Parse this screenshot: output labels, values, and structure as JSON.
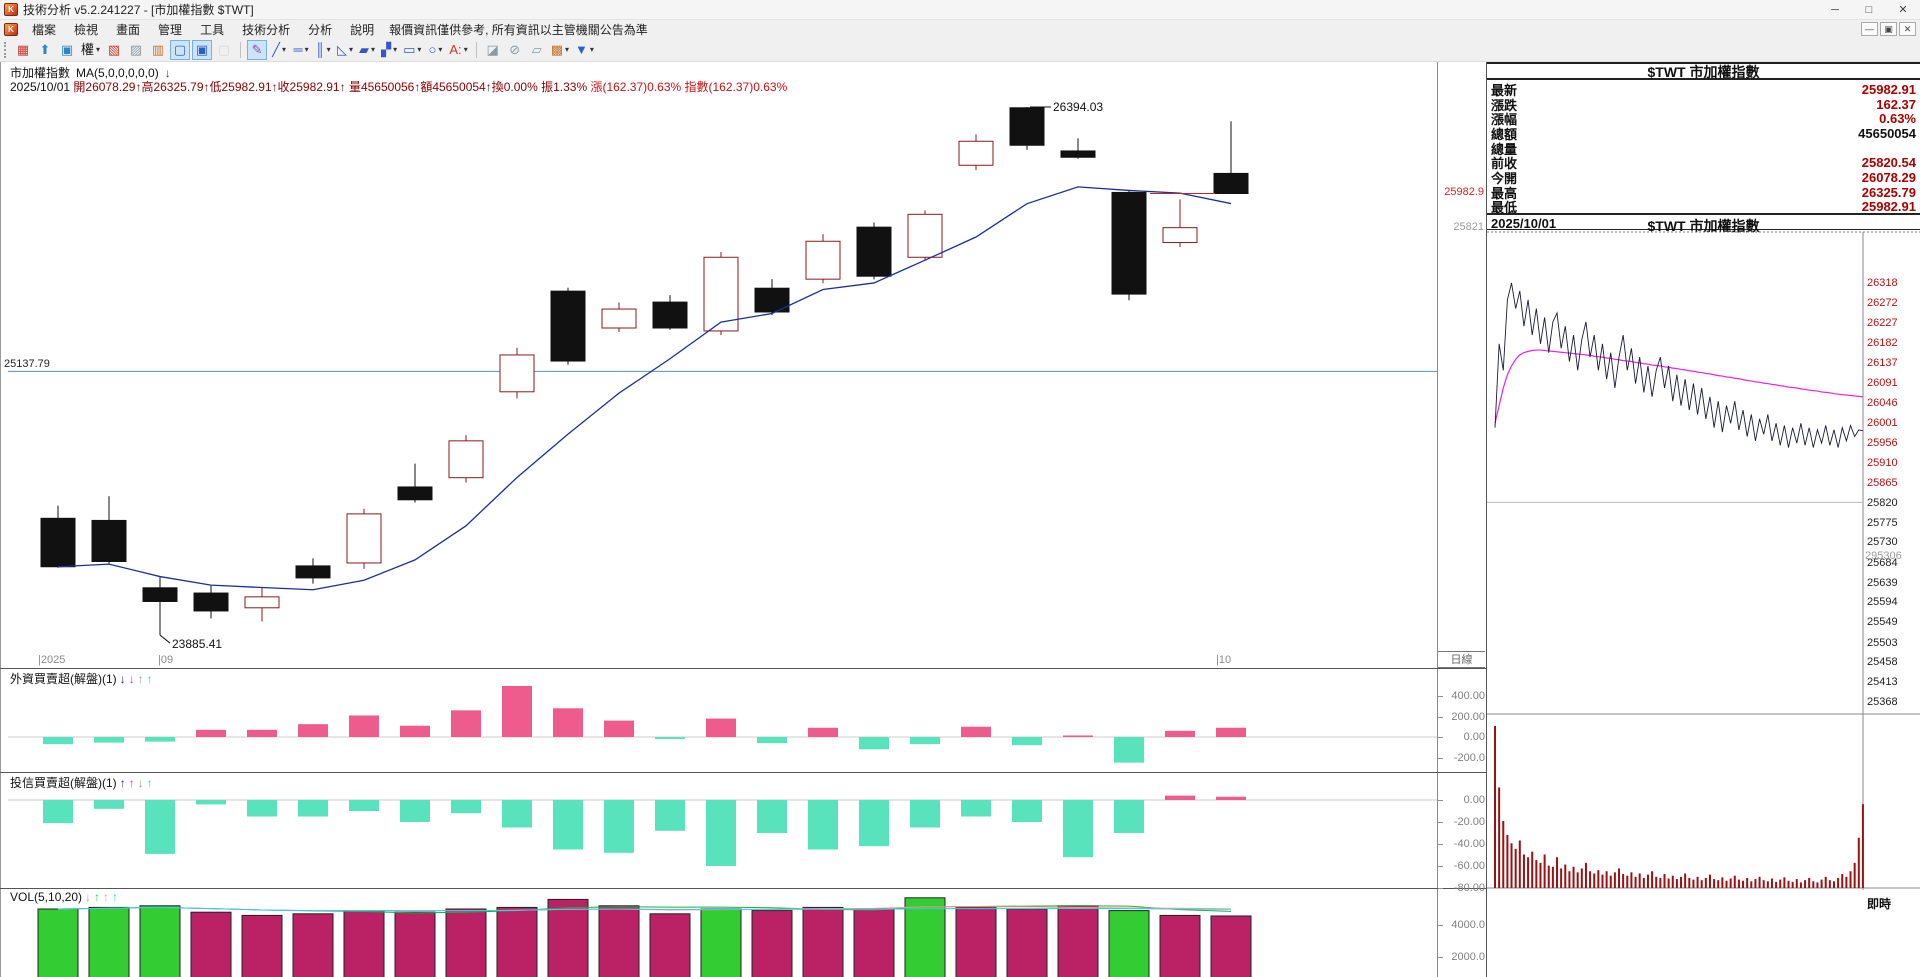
{
  "window": {
    "title": "技術分析 v5.2.241227 - [市加權指數 $TWT]",
    "controls": {
      "minimize": "─",
      "maximize": "□",
      "close": "✕"
    },
    "mdi_controls": {
      "minimize": "—",
      "restore": "▣",
      "close": "✕"
    }
  },
  "menu": {
    "items": [
      "檔案",
      "檢視",
      "畫面",
      "管理",
      "工具",
      "技術分析",
      "分析",
      "說明"
    ],
    "notice": "報價資訊僅供參考, 所有資訊以主管機關公告為準"
  },
  "toolbar": {
    "buttons": [
      {
        "n": "chart-layout-icon",
        "g": "▦",
        "c": "#c23b2e"
      },
      {
        "n": "pointer-up-icon",
        "g": "⬆",
        "c": "#2e86c2"
      },
      {
        "n": "window-layout-icon",
        "g": "▣",
        "c": "#2e86c2"
      },
      {
        "n": "rights-menu",
        "g": "權",
        "c": "#111111",
        "d": true
      },
      {
        "n": "red-candle-chart-icon",
        "g": "▧",
        "c": "#c23b2e"
      },
      {
        "n": "gray-candle-chart-icon",
        "g": "▨",
        "c": "#8a9aa5"
      },
      {
        "n": "mini-chart-window-icon",
        "g": "▥",
        "c": "#c2742e"
      },
      {
        "n": "chart-window-toggle-1",
        "g": "▢",
        "c": "#2e5fc2",
        "p": true
      },
      {
        "n": "chart-window-toggle-2",
        "g": "▣",
        "c": "#2e5fc2",
        "p": true
      },
      {
        "n": "chart-window-disabled",
        "g": "▢",
        "c": "#b5bec4",
        "dis": true
      },
      {
        "sep": true,
        "n": "toolbar-separator-1"
      },
      {
        "n": "draw-pointer-tool",
        "g": "✎",
        "c": "#7a4fb0",
        "p": true
      },
      {
        "n": "trendline-tool",
        "g": "╱",
        "c": "#3a56c4",
        "d": true
      },
      {
        "n": "horizontal-line-tool",
        "g": "═",
        "c": "#3a56c4",
        "d": true
      },
      {
        "n": "vertical-lines-tool",
        "g": "║",
        "c": "#3a56c4",
        "d": true
      },
      {
        "n": "fan-lines-tool",
        "g": "◺",
        "c": "#3a56c4",
        "d": true
      },
      {
        "n": "channel-tool",
        "g": "▰",
        "c": "#3a56c4",
        "d": true
      },
      {
        "n": "parallel-lines-tool",
        "g": "▞",
        "c": "#3a56c4",
        "d": true
      },
      {
        "n": "rectangle-tool",
        "g": "▭",
        "c": "#3a56c4",
        "d": true
      },
      {
        "n": "ellipse-tool",
        "g": "○",
        "c": "#3a56c4",
        "d": true
      },
      {
        "n": "text-tool",
        "g": "A:",
        "c": "#c23b2e",
        "d": true
      },
      {
        "sep": true,
        "n": "toolbar-separator-2"
      },
      {
        "n": "eraser-tool",
        "g": "◪",
        "c": "#8a9aa5"
      },
      {
        "n": "clear-drawings-tool",
        "g": "⊘",
        "c": "#8a9aa5"
      },
      {
        "n": "snapshot-tool",
        "g": "▱",
        "c": "#8a9aa5"
      },
      {
        "n": "grid-settings-tool",
        "g": "▩",
        "c": "#c2742e",
        "d": true
      },
      {
        "n": "save-tool",
        "g": "▼",
        "c": "#2e5fc2",
        "d": true
      }
    ]
  },
  "main_chart": {
    "title": "市加權指數",
    "ma_label": "MA(5,0,0,0,0,0)",
    "trend_arrow": "↓",
    "info_segments": [
      {
        "t": "2025/10/01 ",
        "c": "#111111"
      },
      {
        "t": "開26078.29↑高26325.79↑低25982.91↑收25982.91↑ 量45650056↑額45650054↑換0.00% 振1.33% ",
        "c": "#8b0000"
      },
      {
        "t": "漲(162.37)0.63% ",
        "c": "#cc1111"
      },
      {
        "t": "指數(162.37)0.63%",
        "c": "#cc1111"
      }
    ],
    "hline_label": "25137.79",
    "last_label": "25982.9",
    "prevclose_label": "25821",
    "period_label": "日線",
    "xaxis": [
      {
        "t": "|2025",
        "x": 38
      },
      {
        "t": "|09",
        "x": 158
      },
      {
        "t": "|10",
        "x": 1216
      }
    ]
  },
  "panels": {
    "foreign": {
      "name": "外資買賣超(解盤)(1)",
      "arrows": [
        {
          "g": "↓",
          "c": "#1a1aaa"
        },
        {
          "g": "↓",
          "c": "#ee22ee"
        },
        {
          "g": "↑",
          "c": "#9a9a9a"
        },
        {
          "g": "↑",
          "c": "#22ccee"
        }
      ]
    },
    "trust": {
      "name": "投信買賣超(解盤)(1)",
      "arrows": [
        {
          "g": "↑",
          "c": "#1a1aaa"
        },
        {
          "g": "↑",
          "c": "#ee22ee"
        },
        {
          "g": "↓",
          "c": "#9a9a9a"
        },
        {
          "g": "↑",
          "c": "#22ccee"
        }
      ]
    },
    "vol": {
      "name": "VOL(5,10,20)",
      "arrows": [
        {
          "g": "↓",
          "c": "#aaaaaa"
        },
        {
          "g": "↑",
          "c": "#33cc55"
        },
        {
          "g": "↑",
          "c": "#ff9988"
        },
        {
          "g": "↑",
          "c": "#22ccee"
        }
      ]
    }
  },
  "quote": {
    "title": "$TWT 市加權指數",
    "rows": [
      {
        "label": "最新",
        "value": "25982.91",
        "color": "red"
      },
      {
        "label": "漲跌",
        "value": "162.37",
        "color": "red"
      },
      {
        "label": "漲幅",
        "value": "0.63%",
        "color": "red"
      },
      {
        "label": "總額",
        "value": "45650054",
        "color": "black"
      },
      {
        "label": "總量",
        "value": "",
        "color": "black"
      },
      {
        "label": "前收",
        "value": "25820.54",
        "color": "red"
      },
      {
        "label": "今開",
        "value": "26078.29",
        "color": "red"
      },
      {
        "label": "最高",
        "value": "26325.79",
        "color": "red"
      },
      {
        "label": "最低",
        "value": "25982.91",
        "color": "red"
      }
    ]
  },
  "intraday": {
    "date": "2025/10/01",
    "title": "$TWT 市加權指數",
    "vol_scale_label": "295306",
    "footer": "即時"
  },
  "chart_data": [
    {
      "type": "candlestick",
      "title": "市加權指數 日線",
      "ylim": [
        23805,
        26465
      ],
      "hline": 25137.79,
      "high_annotation": "26394.03",
      "low_annotation": "23885.41",
      "high_session": 19,
      "low_session": 2,
      "prev_close": 25820.54,
      "last_close": 25982.91,
      "sessions": [
        [
          24440,
          24500,
          24205,
          24210
        ],
        [
          24430,
          24545,
          24225,
          24235
        ],
        [
          24110,
          24160,
          23885.41,
          24045
        ],
        [
          24085,
          24120,
          23965,
          24000
        ],
        [
          24015,
          24110,
          23950,
          24067
        ],
        [
          24214,
          24250,
          24130,
          24157
        ],
        [
          24228,
          24485,
          24200,
          24461
        ],
        [
          24589,
          24700,
          24515,
          24528
        ],
        [
          24633,
          24835,
          24610,
          24808
        ],
        [
          25041,
          25250,
          25010,
          25216
        ],
        [
          25519,
          25535,
          25170,
          25187
        ],
        [
          25344,
          25465,
          25325,
          25434
        ],
        [
          25467,
          25500,
          25335,
          25344
        ],
        [
          25330,
          25705,
          25310,
          25680
        ],
        [
          25533,
          25576,
          25405,
          25420
        ],
        [
          25576,
          25790,
          25557,
          25756
        ],
        [
          25823,
          25845,
          25575,
          25590
        ],
        [
          25680,
          25903,
          25665,
          25884
        ],
        [
          26117,
          26264,
          26094,
          26231
        ],
        [
          26390,
          26394.03,
          26190,
          26212
        ],
        [
          26185,
          26245,
          26148,
          26155
        ],
        [
          25988,
          25998,
          25476,
          25505
        ],
        [
          25750,
          25955,
          25728,
          25820.54
        ],
        [
          26078.29,
          26325.79,
          25982.91,
          25982.91
        ]
      ]
    },
    {
      "type": "bar",
      "title": "外資買賣超(解盤)(1)",
      "values": [
        -70,
        -55,
        -45,
        70,
        70,
        125,
        210,
        110,
        260,
        500,
        280,
        160,
        -20,
        180,
        -60,
        90,
        -120,
        -70,
        100,
        -80,
        15,
        -250,
        60,
        90
      ],
      "yticks": [
        {
          "v": 400,
          "t": "400.00"
        },
        {
          "v": 200,
          "t": "200.00"
        },
        {
          "v": 0,
          "t": "0.00"
        },
        {
          "v": -200,
          "t": "-200.0"
        }
      ],
      "pos_color": "#ee5c8d",
      "neg_color": "#58e3bd"
    },
    {
      "type": "bar",
      "title": "投信買賣超(解盤)(1)",
      "values": [
        -21,
        -8,
        -49,
        -4,
        -15,
        -15,
        -10,
        -20,
        -12,
        -25,
        -45,
        -48,
        -28,
        -60,
        -30,
        -45,
        -42,
        -25,
        -15,
        -20,
        -52,
        -30,
        4,
        3
      ],
      "yticks": [
        {
          "v": 0,
          "t": "0.00"
        },
        {
          "v": -20,
          "t": "-20.00"
        },
        {
          "v": -40,
          "t": "-40.00"
        },
        {
          "v": -60,
          "t": "-60.00"
        },
        {
          "v": -80,
          "t": "-80.00"
        }
      ],
      "pos_color": "#ee5c8d",
      "neg_color": "#58e3bd"
    },
    {
      "type": "bar",
      "title": "VOL(5,10,20)",
      "values": [
        5000,
        5100,
        5200,
        4800,
        4600,
        4700,
        4900,
        4800,
        5000,
        5100,
        5600,
        5200,
        4700,
        5000,
        4900,
        5100,
        5000,
        5700,
        5100,
        5000,
        5200,
        4900,
        4600,
        4565
      ],
      "dirs": [
        "down",
        "down",
        "down",
        "up",
        "up",
        "up",
        "up",
        "up",
        "up",
        "up",
        "up",
        "up",
        "up",
        "down",
        "up",
        "up",
        "up",
        "down",
        "up",
        "up",
        "up",
        "down",
        "up",
        "up"
      ],
      "yticks": [
        {
          "v": 4000,
          "t": "4000.0"
        },
        {
          "v": 2000,
          "t": "2000.0"
        }
      ],
      "up_color": "#bb2266",
      "down_color": "#33cc33",
      "ma_colors": [
        "#22aa44",
        "#ff9988",
        "#33ccee"
      ]
    },
    {
      "type": "line",
      "title": "$TWT 市加權指數 即時",
      "prev_close": 25820.54,
      "axis_labels": [
        26318,
        26272,
        26227,
        26182,
        26137,
        26091,
        26046,
        26001,
        25956,
        25910,
        25865,
        25820,
        25775,
        25730,
        25684,
        25639,
        25594,
        25549,
        25503,
        25458,
        25413,
        25368
      ],
      "vol_max": 295306,
      "price": [
        25990,
        26180,
        26120,
        26280,
        26318,
        26260,
        26300,
        26220,
        26280,
        26200,
        26260,
        26180,
        26240,
        26160,
        26230,
        26250,
        26170,
        26220,
        26140,
        26200,
        26120,
        26190,
        26230,
        26150,
        26200,
        26120,
        26180,
        26100,
        26160,
        26080,
        26150,
        26200,
        26120,
        26170,
        26090,
        26150,
        26070,
        26130,
        26060,
        26120,
        26150,
        26080,
        26130,
        26050,
        26110,
        26040,
        26100,
        26030,
        26090,
        26020,
        26080,
        26010,
        26060,
        25990,
        26050,
        25980,
        26040,
        26000,
        26050,
        25985,
        26030,
        25970,
        26020,
        25960,
        26010,
        25975,
        26020,
        25960,
        26000,
        25950,
        25995,
        25945,
        25990,
        25955,
        26000,
        25950,
        25990,
        25945,
        25985,
        25955,
        25995,
        25950,
        25985,
        25945,
        25990,
        25960,
        25995,
        25970,
        25985,
        25983
      ],
      "avg": [
        26000,
        26040,
        26080,
        26110,
        26130,
        26145,
        26155,
        26160,
        26163,
        26165,
        26166,
        26166,
        26165,
        26164,
        26163,
        26162,
        26161,
        26160,
        26159,
        26158,
        26157,
        26156,
        26155,
        26154,
        26152,
        26151,
        26150,
        26148,
        26147,
        26145,
        26144,
        26142,
        26141,
        26140,
        26138,
        26137,
        26135,
        26134,
        26132,
        26131,
        26130,
        26128,
        26127,
        26125,
        26124,
        26122,
        26121,
        26119,
        26118,
        26116,
        26115,
        26113,
        26112,
        26110,
        26108,
        26107,
        26105,
        26104,
        26102,
        26101,
        26099,
        26097,
        26096,
        26094,
        26093,
        26091,
        26090,
        26088,
        26087,
        26085,
        26084,
        26082,
        26081,
        26080,
        26078,
        26077,
        26075,
        26074,
        26073,
        26071,
        26070,
        26069,
        26067,
        26066,
        26065,
        26064,
        26063,
        26062,
        26061,
        26060
      ],
      "volume": [
        290000,
        180000,
        120000,
        95000,
        80000,
        70000,
        85000,
        60000,
        55000,
        65000,
        50000,
        45000,
        60000,
        40000,
        38000,
        55000,
        35000,
        42000,
        30000,
        38000,
        28000,
        35000,
        45000,
        30000,
        26000,
        32000,
        24000,
        30000,
        22000,
        28000,
        35000,
        25000,
        22000,
        28000,
        20000,
        26000,
        18000,
        24000,
        30000,
        20000,
        18000,
        25000,
        17000,
        22000,
        16000,
        20000,
        26000,
        18000,
        15000,
        20000,
        14000,
        18000,
        24000,
        16000,
        14000,
        19000,
        13000,
        17000,
        22000,
        15000,
        13000,
        18000,
        12000,
        16000,
        20000,
        14000,
        12000,
        17000,
        11000,
        15000,
        19000,
        13000,
        11000,
        16000,
        10000,
        14000,
        18000,
        12000,
        10000,
        15000,
        20000,
        14000,
        12000,
        18000,
        25000,
        20000,
        30000,
        45000,
        90000,
        150000
      ],
      "colors": {
        "price_line": "#1b1b3a",
        "avg_line": "#e820e8",
        "volume_bar": "#991111"
      }
    }
  ]
}
